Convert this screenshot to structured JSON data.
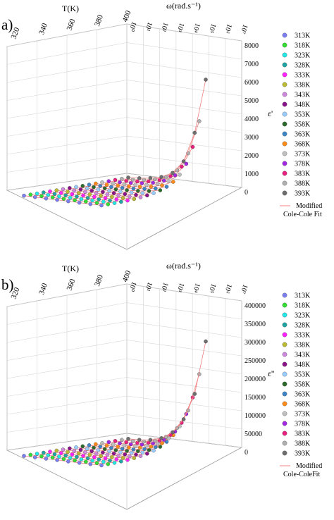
{
  "chart_data": [
    {
      "type": "scatter",
      "panel_label": "a)",
      "z_axis_label": "ε'",
      "x_axis_label": "T(K)",
      "y_axis_label": "ω(rad.s⁻¹)",
      "temperature_ticks": [
        "320",
        "340",
        "360",
        "380",
        "400"
      ],
      "frequency_ticks": [
        "10⁰",
        "10¹",
        "10²",
        "10³",
        "10⁴",
        "10⁵",
        "10⁶",
        "10⁷"
      ],
      "z_ticks": [
        "0",
        "1000",
        "2000",
        "3000",
        "4000",
        "5000",
        "6000",
        "7000",
        "8000"
      ],
      "zlim": [
        0,
        8000
      ],
      "series": [
        {
          "name": "313K",
          "color": "#7b7ff0",
          "values": [
            20,
            18,
            16,
            15,
            14,
            13,
            12,
            11
          ]
        },
        {
          "name": "318K",
          "color": "#33dd33",
          "values": [
            25,
            22,
            19,
            17,
            15,
            14,
            13,
            12
          ]
        },
        {
          "name": "323K",
          "color": "#22e8e8",
          "values": [
            35,
            28,
            24,
            21,
            18,
            16,
            14,
            13
          ]
        },
        {
          "name": "328K",
          "color": "#20a5a5",
          "values": [
            45,
            36,
            30,
            25,
            22,
            19,
            16,
            14
          ]
        },
        {
          "name": "333K",
          "color": "#ff22ff",
          "values": [
            60,
            46,
            37,
            30,
            25,
            21,
            18,
            15
          ]
        },
        {
          "name": "338K",
          "color": "#bbbb33",
          "values": [
            85,
            62,
            47,
            37,
            30,
            24,
            20,
            17
          ]
        },
        {
          "name": "343K",
          "color": "#cc88dd",
          "values": [
            120,
            85,
            62,
            47,
            36,
            29,
            23,
            19
          ]
        },
        {
          "name": "348K",
          "color": "#8a158a",
          "values": [
            170,
            115,
            82,
            61,
            46,
            35,
            27,
            22
          ]
        },
        {
          "name": "353K",
          "color": "#99ccff",
          "values": [
            240,
            160,
            110,
            80,
            58,
            43,
            32,
            25
          ]
        },
        {
          "name": "358K",
          "color": "#2d6a2d",
          "values": [
            340,
            220,
            150,
            105,
            75,
            54,
            39,
            29
          ]
        },
        {
          "name": "363K",
          "color": "#3d85c6",
          "values": [
            480,
            300,
            200,
            135,
            95,
            67,
            47,
            34
          ]
        },
        {
          "name": "368K",
          "color": "#ff8c1a",
          "values": [
            700,
            420,
            270,
            175,
            120,
            82,
            56,
            40
          ]
        },
        {
          "name": "373K",
          "color": "#c0c0c0",
          "values": [
            1050,
            600,
            360,
            225,
            150,
            100,
            67,
            47
          ]
        },
        {
          "name": "378K",
          "color": "#a028e0",
          "values": [
            1600,
            870,
            490,
            290,
            185,
            120,
            79,
            54
          ]
        },
        {
          "name": "383K",
          "color": "#e82080",
          "values": [
            2500,
            1300,
            680,
            380,
            230,
            145,
            93,
            62
          ]
        },
        {
          "name": "388K",
          "color": "#b0b0b0",
          "values": [
            3900,
            2000,
            960,
            500,
            285,
            175,
            108,
            70
          ]
        },
        {
          "name": "393K",
          "color": "#6e6e6e",
          "values": [
            6200,
            3100,
            1400,
            670,
            355,
            210,
            125,
            80
          ]
        }
      ],
      "fit_label_line1": "Modified",
      "fit_label_line2": "Cole-Cole Fit",
      "legend_placement": "right",
      "grid": true
    },
    {
      "type": "scatter",
      "panel_label": "b)",
      "z_axis_label": "ε''",
      "x_axis_label": "T(K)",
      "y_axis_label": "ω(rad.s⁻¹)",
      "temperature_ticks": [
        "320",
        "340",
        "360",
        "380",
        "400"
      ],
      "frequency_ticks": [
        "10⁰",
        "10¹",
        "10²",
        "10³",
        "10⁴",
        "10⁵",
        "10⁶",
        "10⁷"
      ],
      "z_ticks": [
        "0",
        "50000",
        "100000",
        "150000",
        "200000",
        "250000",
        "300000",
        "350000",
        "400000"
      ],
      "zlim": [
        0,
        400000
      ],
      "series": [
        {
          "name": "313K",
          "color": "#7b7ff0",
          "values": [
            1200,
            700,
            400,
            250,
            160,
            100,
            60,
            40
          ]
        },
        {
          "name": "318K",
          "color": "#33dd33",
          "values": [
            1700,
            900,
            500,
            300,
            180,
            110,
            70,
            45
          ]
        },
        {
          "name": "323K",
          "color": "#22e8e8",
          "values": [
            2400,
            1300,
            700,
            380,
            220,
            130,
            80,
            50
          ]
        },
        {
          "name": "328K",
          "color": "#20a5a5",
          "values": [
            3400,
            1800,
            950,
            500,
            280,
            160,
            95,
            57
          ]
        },
        {
          "name": "333K",
          "color": "#ff22ff",
          "values": [
            4800,
            2500,
            1300,
            680,
            360,
            200,
            110,
            65
          ]
        },
        {
          "name": "338K",
          "color": "#bbbb33",
          "values": [
            6800,
            3500,
            1800,
            900,
            470,
            250,
            135,
            75
          ]
        },
        {
          "name": "343K",
          "color": "#cc88dd",
          "values": [
            9600,
            4900,
            2500,
            1250,
            620,
            320,
            165,
            88
          ]
        },
        {
          "name": "348K",
          "color": "#8a158a",
          "values": [
            13500,
            6900,
            3500,
            1700,
            830,
            410,
            200,
            100
          ]
        },
        {
          "name": "353K",
          "color": "#99ccff",
          "values": [
            19000,
            9700,
            4900,
            2400,
            1100,
            530,
            250,
            120
          ]
        },
        {
          "name": "358K",
          "color": "#2d6a2d",
          "values": [
            27000,
            13700,
            6900,
            3300,
            1500,
            690,
            310,
            140
          ]
        },
        {
          "name": "363K",
          "color": "#3d85c6",
          "values": [
            38000,
            19300,
            9600,
            4600,
            2100,
            900,
            390,
            165
          ]
        },
        {
          "name": "368K",
          "color": "#ff8c1a",
          "values": [
            54000,
            27000,
            13500,
            6400,
            2900,
            1200,
            490,
            195
          ]
        },
        {
          "name": "373K",
          "color": "#c0c0c0",
          "values": [
            76000,
            38000,
            19000,
            9000,
            4000,
            1600,
            620,
            230
          ]
        },
        {
          "name": "378K",
          "color": "#a028e0",
          "values": [
            108000,
            54000,
            27000,
            12600,
            5500,
            2150,
            780,
            270
          ]
        },
        {
          "name": "383K",
          "color": "#e82080",
          "values": [
            152000,
            76000,
            38000,
            17700,
            7600,
            2900,
            1000,
            320
          ]
        },
        {
          "name": "388K",
          "color": "#b0b0b0",
          "values": [
            215000,
            108000,
            54000,
            25000,
            10500,
            3900,
            1280,
            380
          ]
        },
        {
          "name": "393K",
          "color": "#6e6e6e",
          "values": [
            305000,
            152000,
            76000,
            35000,
            14500,
            5300,
            1650,
            450
          ]
        }
      ],
      "fit_label_line1": "Modified",
      "fit_label_line2": "Cole-ColeFit",
      "legend_placement": "right",
      "grid": true
    }
  ]
}
